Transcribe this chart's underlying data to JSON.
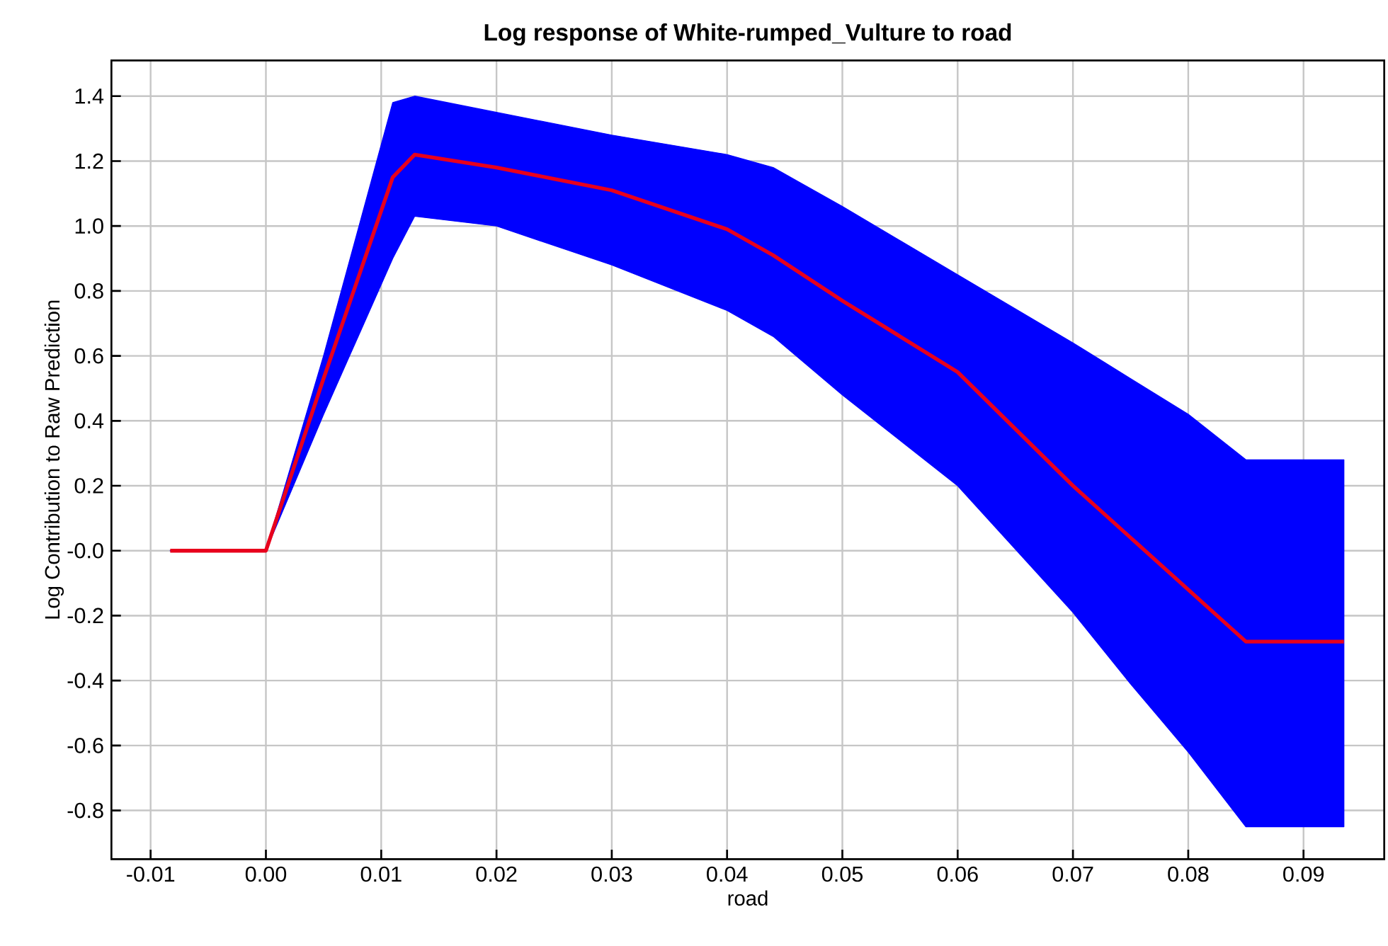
{
  "chart_data": {
    "type": "line",
    "title": "Log response of White-rumped_Vulture to road",
    "xlabel": "road",
    "ylabel": "Log Contribution to Raw Prediction",
    "series": [
      {
        "color": "#e8001c",
        "x": [
          -0.0083,
          0,
          0.005,
          0.011,
          0.0129,
          0.02,
          0.03,
          0.04,
          0.044,
          0.05,
          0.06,
          0.07,
          0.075,
          0.08,
          0.085,
          0.0935
        ],
        "values": [
          0,
          0,
          0.53,
          1.15,
          1.22,
          1.18,
          1.11,
          0.99,
          0.91,
          0.77,
          0.55,
          0.2,
          0.04,
          -0.12,
          -0.28,
          -0.28
        ],
        "lower": [
          0,
          0,
          0.42,
          0.9,
          1.03,
          1.0,
          0.88,
          0.74,
          0.66,
          0.48,
          0.2,
          -0.19,
          -0.41,
          -0.62,
          -0.85,
          -0.85
        ],
        "upper": [
          0,
          0,
          0.6,
          1.38,
          1.4,
          1.35,
          1.28,
          1.22,
          1.18,
          1.06,
          0.85,
          0.64,
          0.53,
          0.42,
          0.28,
          0.28
        ]
      }
    ],
    "xlim": [
      -0.0134,
      0.097
    ],
    "ylim": [
      -0.95,
      1.51
    ],
    "xticks": [
      {
        "value": -0.01,
        "label": "-0.01"
      },
      {
        "value": 0,
        "label": "0.00"
      },
      {
        "value": 0.01,
        "label": "0.01"
      },
      {
        "value": 0.02,
        "label": "0.02"
      },
      {
        "value": 0.03,
        "label": "0.03"
      },
      {
        "value": 0.04,
        "label": "0.04"
      },
      {
        "value": 0.05,
        "label": "0.05"
      },
      {
        "value": 0.06,
        "label": "0.06"
      },
      {
        "value": 0.07,
        "label": "0.07"
      },
      {
        "value": 0.08,
        "label": "0.08"
      },
      {
        "value": 0.09,
        "label": "0.09"
      }
    ],
    "yticks": [
      {
        "value": -0.8,
        "label": "-0.8"
      },
      {
        "value": -0.6,
        "label": "-0.6"
      },
      {
        "value": -0.4,
        "label": "-0.4"
      },
      {
        "value": -0.2,
        "label": "-0.2"
      },
      {
        "value": 0,
        "label": "-0.0"
      },
      {
        "value": 0.2,
        "label": "0.2"
      },
      {
        "value": 0.4,
        "label": "0.4"
      },
      {
        "value": 0.6,
        "label": "0.6"
      },
      {
        "value": 0.8,
        "label": "0.8"
      },
      {
        "value": 1.0,
        "label": "1.0"
      },
      {
        "value": 1.2,
        "label": "1.2"
      },
      {
        "value": 1.4,
        "label": "1.4"
      }
    ],
    "grid": true,
    "marker": "none",
    "line_style": "solid"
  }
}
